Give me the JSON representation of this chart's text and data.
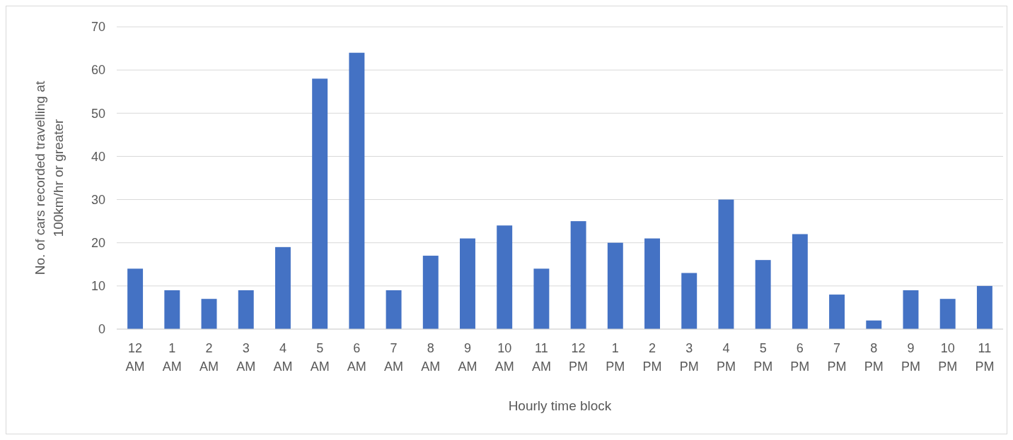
{
  "chart_data": {
    "type": "bar",
    "xlabel": "Hourly time block",
    "ylabel": "No. of cars recorded travelling at 100km/hr or greater",
    "categories": [
      "12 AM",
      "1 AM",
      "2 AM",
      "3 AM",
      "4 AM",
      "5 AM",
      "6 AM",
      "7 AM",
      "8 AM",
      "9 AM",
      "10 AM",
      "11 AM",
      "12 PM",
      "1 PM",
      "2 PM",
      "3 PM",
      "4 PM",
      "5 PM",
      "6 PM",
      "7 PM",
      "8 PM",
      "9 PM",
      "10 PM",
      "11 PM"
    ],
    "values": [
      14,
      9,
      7,
      9,
      19,
      58,
      64,
      9,
      17,
      21,
      24,
      14,
      25,
      20,
      21,
      13,
      30,
      16,
      22,
      8,
      2,
      9,
      7,
      10
    ],
    "color": "#4472c4",
    "ylim": [
      0,
      70
    ],
    "yticks": [
      0,
      10,
      20,
      30,
      40,
      50,
      60,
      70
    ],
    "grid": "y"
  }
}
